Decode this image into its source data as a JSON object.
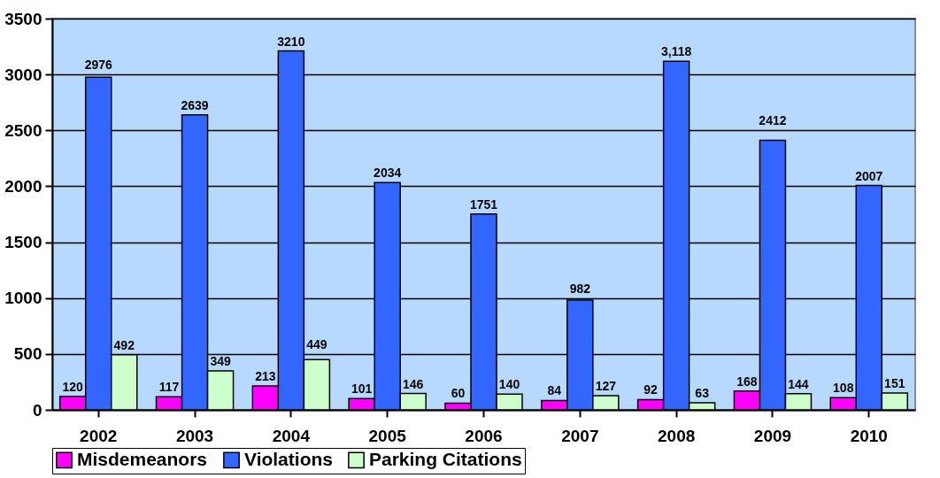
{
  "chart_data": {
    "type": "bar",
    "categories": [
      "2002",
      "2003",
      "2004",
      "2005",
      "2006",
      "2007",
      "2008",
      "2009",
      "2010"
    ],
    "series": [
      {
        "name": "Misdemeanors",
        "color": "#ff00ff",
        "values": [
          120,
          117,
          213,
          101,
          60,
          84,
          92,
          168,
          108
        ],
        "value_labels": [
          "120",
          "117",
          "213",
          "101",
          "60",
          "84",
          "92",
          "168",
          "108"
        ]
      },
      {
        "name": "Violations",
        "color": "#3366ff",
        "values": [
          2976,
          2639,
          3210,
          2034,
          1751,
          982,
          3118,
          2412,
          2007
        ],
        "value_labels": [
          "2976",
          "2639",
          "3210",
          "2034",
          "1751",
          "982",
          "3,118",
          "2412",
          "2007"
        ]
      },
      {
        "name": "Parking Citations",
        "color": "#ccffcc",
        "values": [
          492,
          349,
          449,
          146,
          140,
          127,
          63,
          144,
          151
        ],
        "value_labels": [
          "492",
          "349",
          "449",
          "146",
          "140",
          "127",
          "63",
          "144",
          "151"
        ]
      }
    ],
    "ylim": [
      0,
      3500
    ],
    "yticks": [
      0,
      500,
      1000,
      1500,
      2000,
      2500,
      3000,
      3500
    ],
    "grid": "y",
    "legend": "bottom"
  }
}
